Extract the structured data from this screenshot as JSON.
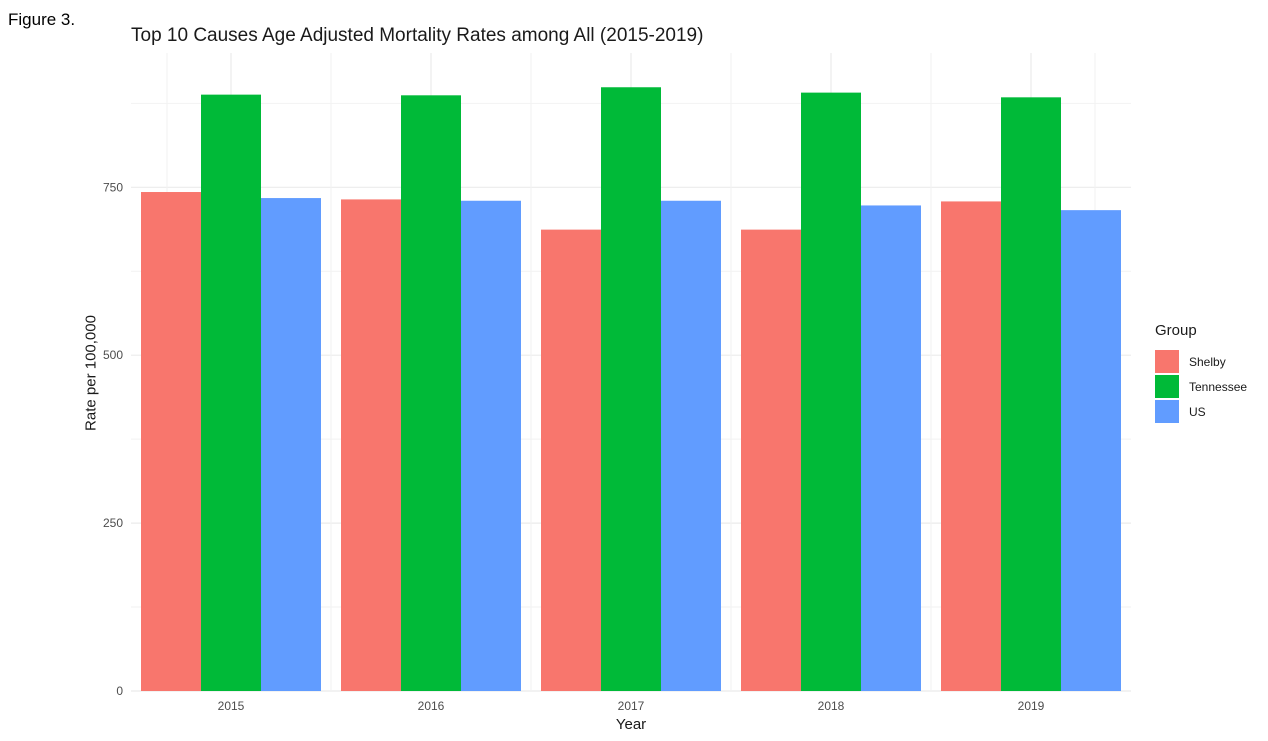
{
  "figure_label": "Figure 3.",
  "chart_data": {
    "type": "bar",
    "title": "Top 10 Causes Age Adjusted Mortality Rates among All (2015-2019)",
    "xlabel": "Year",
    "ylabel": "Rate per 100,000",
    "categories": [
      "2015",
      "2016",
      "2017",
      "2018",
      "2019"
    ],
    "series": [
      {
        "name": "Shelby",
        "color": "#F8766D",
        "values": [
          743,
          732,
          687,
          687,
          729
        ]
      },
      {
        "name": "Tennessee",
        "color": "#00BA38",
        "values": [
          888,
          887,
          899,
          891,
          884
        ]
      },
      {
        "name": "US",
        "color": "#619CFF",
        "values": [
          734,
          730,
          730,
          723,
          716
        ]
      }
    ],
    "y_ticks": [
      "0",
      "250",
      "500",
      "750"
    ],
    "ylim": [
      0,
      950
    ],
    "grid": true,
    "legend": {
      "title": "Group",
      "position": "right"
    }
  }
}
